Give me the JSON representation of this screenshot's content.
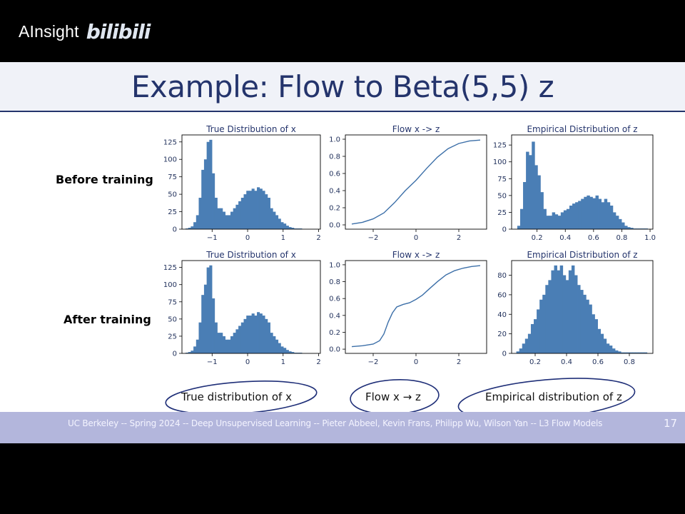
{
  "watermark": {
    "name": "AInsight",
    "logo_text": "bilibili"
  },
  "slide": {
    "title": "Example: Flow to Beta(5,5) z",
    "row_labels": [
      "Before training",
      "After training"
    ],
    "captions": [
      "True distribution of x",
      "Flow x → z",
      "Empirical distribution of z"
    ],
    "footer": "UC Berkeley -- Spring 2024 -- Deep Unsupervised Learning -- Pieter Abbeel, Kevin Frans, Philipp Wu, Wilson Yan -- L3 Flow Models",
    "page_number": "17"
  },
  "colors": {
    "bar": "#4a7eb5",
    "line": "#3c6fa8",
    "title": "#24346c",
    "footer": "#b3b6dc"
  },
  "chart_data": [
    {
      "type": "bar",
      "title": "True Distribution of x",
      "xlim": [
        -1.85,
        2.05
      ],
      "ylim": [
        0,
        135
      ],
      "xticks": [
        -1,
        0,
        1,
        2
      ],
      "xticklabels": [
        "−1",
        "0",
        "1",
        "2"
      ],
      "yticks": [
        0,
        25,
        50,
        75,
        100,
        125
      ],
      "bin_start": -1.75,
      "bin_width": 0.0745,
      "values": [
        1,
        2,
        4,
        10,
        20,
        45,
        85,
        100,
        125,
        128,
        80,
        45,
        30,
        30,
        25,
        20,
        20,
        25,
        30,
        35,
        40,
        45,
        50,
        55,
        55,
        58,
        55,
        60,
        58,
        55,
        50,
        45,
        30,
        25,
        20,
        15,
        10,
        8,
        5,
        3,
        2,
        1,
        1,
        1
      ]
    },
    {
      "type": "line",
      "title": "Flow x -> z",
      "xlim": [
        -3.3,
        3.3
      ],
      "ylim": [
        -0.05,
        1.05
      ],
      "xticks": [
        -2,
        0,
        2
      ],
      "xticklabels": [
        "−2",
        "0",
        "2"
      ],
      "yticks": [
        0,
        0.2,
        0.4,
        0.6,
        0.8,
        1.0
      ],
      "yticklabels": [
        "0.0",
        "0.2",
        "0.4",
        "0.6",
        "0.8",
        "1.0"
      ],
      "x": [
        -3.0,
        -2.5,
        -2.0,
        -1.5,
        -1.0,
        -0.5,
        0.0,
        0.5,
        1.0,
        1.5,
        2.0,
        2.5,
        3.0
      ],
      "y": [
        0.01,
        0.03,
        0.07,
        0.14,
        0.26,
        0.4,
        0.52,
        0.66,
        0.79,
        0.89,
        0.95,
        0.98,
        0.99
      ]
    },
    {
      "type": "bar",
      "title": "Empirical Distribution of z",
      "xlim": [
        0.02,
        1.02
      ],
      "ylim": [
        0,
        140
      ],
      "xticks": [
        0.2,
        0.4,
        0.6,
        0.8,
        1.0
      ],
      "xticklabels": [
        "0.2",
        "0.4",
        "0.6",
        "0.8",
        "1.0"
      ],
      "yticks": [
        0,
        25,
        50,
        75,
        100,
        125
      ],
      "bin_start": 0.06,
      "bin_width": 0.0205,
      "values": [
        5,
        30,
        70,
        115,
        110,
        130,
        95,
        80,
        55,
        30,
        20,
        20,
        25,
        22,
        20,
        25,
        28,
        30,
        35,
        38,
        40,
        42,
        45,
        48,
        50,
        48,
        46,
        50,
        45,
        40,
        45,
        40,
        35,
        25,
        20,
        15,
        10,
        5,
        3,
        2,
        1,
        1,
        1,
        1,
        1
      ]
    },
    {
      "type": "bar",
      "title": "True Distribution of x",
      "xlim": [
        -1.85,
        2.05
      ],
      "ylim": [
        0,
        135
      ],
      "xticks": [
        -1,
        0,
        1,
        2
      ],
      "xticklabels": [
        "−1",
        "0",
        "1",
        "2"
      ],
      "yticks": [
        0,
        25,
        50,
        75,
        100,
        125
      ],
      "bin_start": -1.75,
      "bin_width": 0.0745,
      "values": [
        1,
        2,
        4,
        10,
        20,
        45,
        85,
        100,
        125,
        128,
        80,
        45,
        30,
        30,
        25,
        20,
        20,
        25,
        30,
        35,
        40,
        45,
        50,
        55,
        55,
        58,
        55,
        60,
        58,
        55,
        50,
        45,
        30,
        25,
        20,
        15,
        10,
        8,
        5,
        3,
        2,
        1,
        1,
        1
      ]
    },
    {
      "type": "line",
      "title": "Flow x -> z",
      "xlim": [
        -3.3,
        3.3
      ],
      "ylim": [
        -0.05,
        1.05
      ],
      "xticks": [
        -2,
        0,
        2
      ],
      "xticklabels": [
        "−2",
        "0",
        "2"
      ],
      "yticks": [
        0,
        0.2,
        0.4,
        0.6,
        0.8,
        1.0
      ],
      "yticklabels": [
        "0.0",
        "0.2",
        "0.4",
        "0.6",
        "0.8",
        "1.0"
      ],
      "x": [
        -3.0,
        -2.5,
        -2.0,
        -1.7,
        -1.5,
        -1.3,
        -1.1,
        -0.9,
        -0.6,
        -0.3,
        0.0,
        0.3,
        0.6,
        1.0,
        1.4,
        1.8,
        2.2,
        2.6,
        3.0
      ],
      "y": [
        0.03,
        0.04,
        0.06,
        0.1,
        0.18,
        0.32,
        0.43,
        0.5,
        0.53,
        0.55,
        0.59,
        0.64,
        0.71,
        0.8,
        0.88,
        0.93,
        0.96,
        0.98,
        0.99
      ]
    },
    {
      "type": "bar",
      "title": "Empirical Distribution of z",
      "xlim": [
        0.05,
        0.95
      ],
      "ylim": [
        0,
        95
      ],
      "xticks": [
        0.2,
        0.4,
        0.6,
        0.8
      ],
      "xticklabels": [
        "0.2",
        "0.4",
        "0.6",
        "0.8"
      ],
      "yticks": [
        0,
        20,
        40,
        60,
        80
      ],
      "bin_start": 0.08,
      "bin_width": 0.0185,
      "values": [
        2,
        5,
        10,
        15,
        20,
        30,
        35,
        45,
        55,
        60,
        70,
        75,
        85,
        90,
        85,
        90,
        80,
        75,
        85,
        90,
        80,
        70,
        65,
        60,
        55,
        50,
        40,
        35,
        25,
        20,
        15,
        10,
        8,
        5,
        3,
        2,
        1,
        1,
        1,
        1,
        1,
        1,
        1,
        1,
        1
      ]
    }
  ]
}
